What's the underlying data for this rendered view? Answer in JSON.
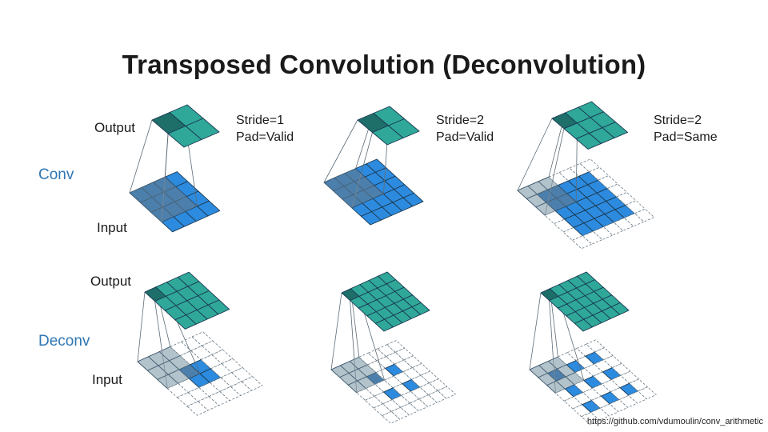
{
  "title": "Transposed Convolution (Deconvolution)",
  "row_labels": {
    "conv": "Conv",
    "deconv": "Deconv"
  },
  "axis_labels": {
    "conv_output": "Output",
    "conv_input": "Input",
    "deconv_output": "Output",
    "deconv_input": "Input"
  },
  "columns": [
    {
      "stride": "Stride=1",
      "pad": "Pad=Valid"
    },
    {
      "stride": "Stride=2",
      "pad": "Pad=Valid"
    },
    {
      "stride": "Stride=2",
      "pad": "Pad=Same"
    }
  ],
  "source": "https://github.com/vdumoulin/conv_arithmetic",
  "colors": {
    "output_fill": "#2fa89a",
    "output_highlight": "#1e6e6a",
    "input_fill": "#2d8bdf",
    "input_highlight": "#1f5f98",
    "padding_highlight": "#a9bac2",
    "grid_line": "#1b3a52",
    "row_label": "#2f77b4"
  }
}
